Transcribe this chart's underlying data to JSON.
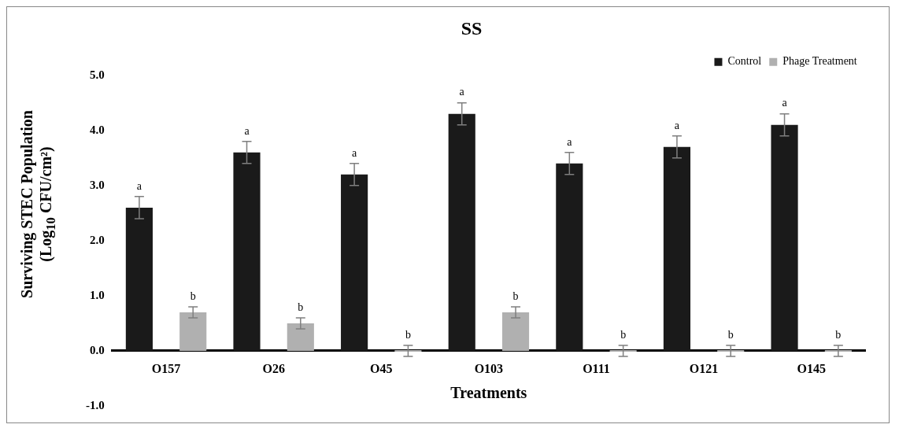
{
  "chart_data": {
    "type": "bar",
    "title": "SS",
    "xlabel": "Treatments",
    "ylabel": "Surviving STEC Population (Log$_{10}$ CFU/cm²)",
    "categories": [
      "O157",
      "O26",
      "O45",
      "O103",
      "O111",
      "O121",
      "O145"
    ],
    "series": [
      {
        "name": "Control",
        "color": "#1a1a1a",
        "values": [
          2.6,
          3.6,
          3.2,
          4.3,
          3.4,
          3.7,
          4.1
        ],
        "errors": [
          0.2,
          0.2,
          0.2,
          0.2,
          0.2,
          0.2,
          0.2
        ],
        "value_labels": [
          "a",
          "a",
          "a",
          "a",
          "a",
          "a",
          "a"
        ]
      },
      {
        "name": "Phage Treatment",
        "color": "#b0b0b0",
        "values": [
          0.7,
          0.5,
          0,
          0.7,
          0,
          0,
          0
        ],
        "errors": [
          0.1,
          0.1,
          0.1,
          0.1,
          0.1,
          0.1,
          0.1
        ],
        "value_labels": [
          "b",
          "b",
          "b",
          "b",
          "b",
          "b",
          "b"
        ]
      }
    ],
    "ylim": [
      -1,
      5
    ],
    "yticks": [
      {
        "value": -1,
        "label": "-1.0"
      },
      {
        "value": 0,
        "label": "0.0"
      },
      {
        "value": 1,
        "label": "1.0"
      },
      {
        "value": 2,
        "label": "2.0"
      },
      {
        "value": 3,
        "label": "3.0"
      },
      {
        "value": 4,
        "label": "4.0"
      },
      {
        "value": 5,
        "label": "5.0"
      }
    ],
    "grid": false,
    "legend": "top right"
  }
}
